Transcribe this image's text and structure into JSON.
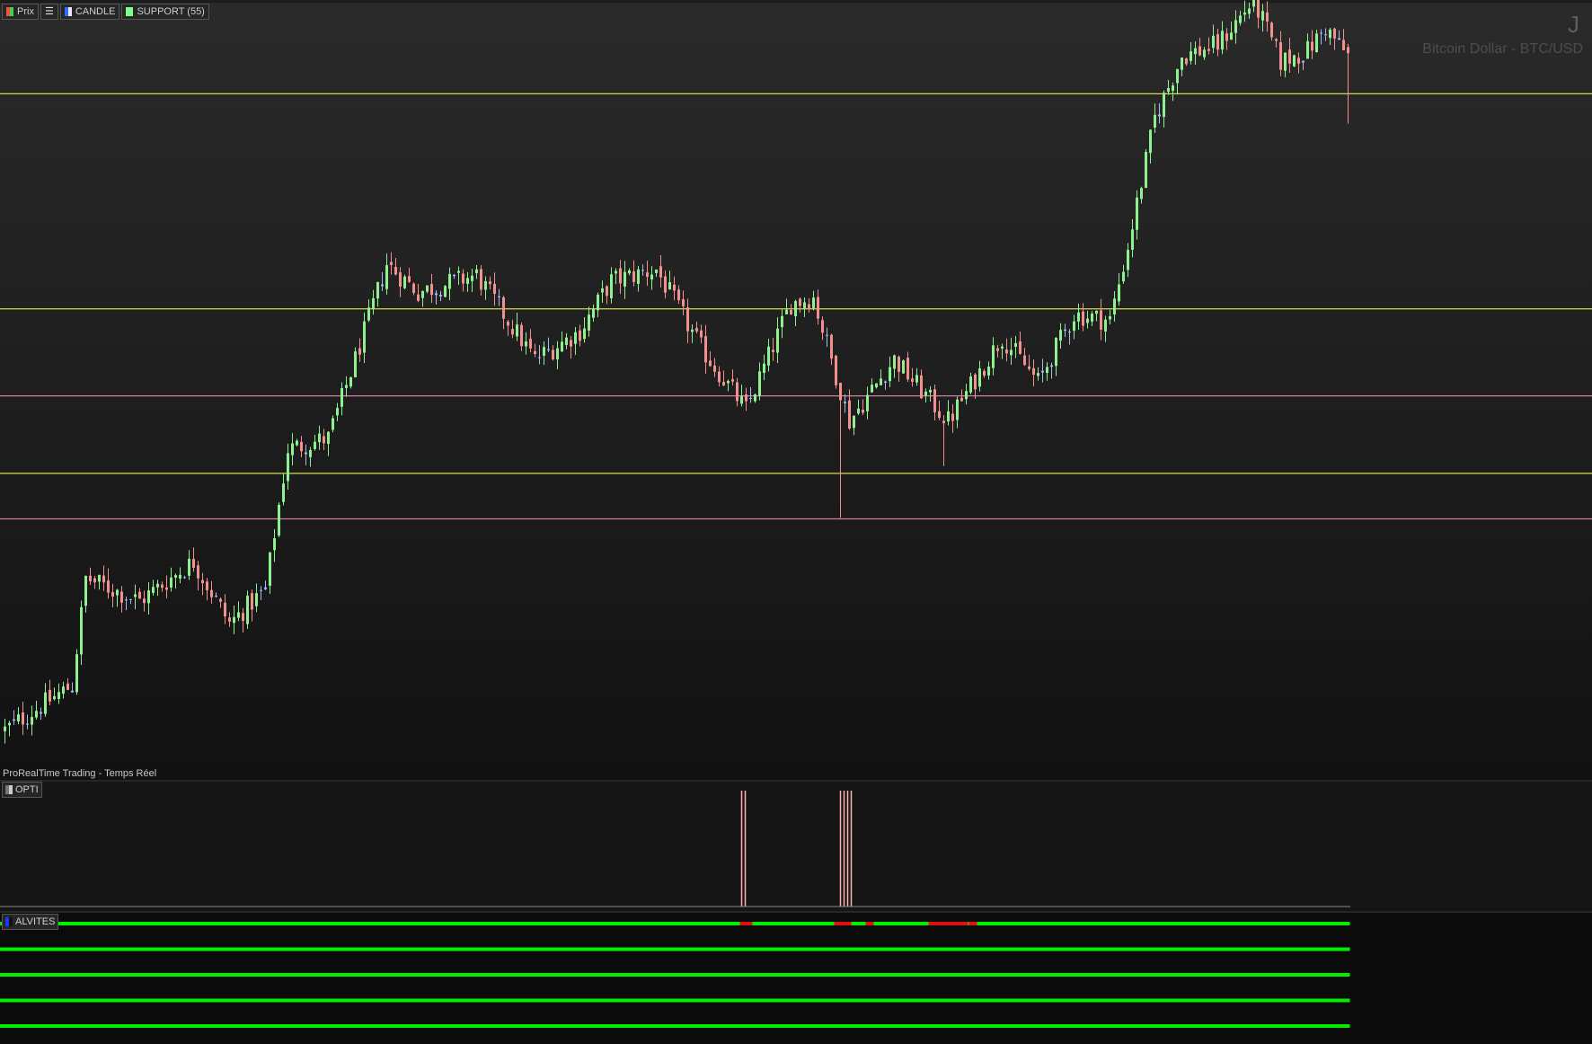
{
  "legend": [
    {
      "label": "Prix",
      "swatch": "split"
    },
    {
      "label": "",
      "swatch": "list-icon"
    },
    {
      "label": "CANDLE",
      "swatch": "blue"
    },
    {
      "label": "SUPPORT (55)",
      "swatch": "green"
    }
  ],
  "header": {
    "period": "J",
    "instrument": "Bitcoin Dollar - BTC/USD"
  },
  "footer_credit": "ProRealTime Trading - Temps Réel",
  "panes": {
    "opti_label": "OPTI",
    "alvites_label": "ALVITES"
  },
  "colors": {
    "background_top": "#2a2a2a",
    "background_bottom": "#121212",
    "bull": "#8ef08e",
    "bear": "#f29090",
    "neutral": "#a9b8f2",
    "resistance": "#d8d84a",
    "support": "#d27ea6",
    "signal": "#ffb3b3",
    "alvites_on": "#00ee00",
    "alvites_off": "#dd1111"
  },
  "chart_data": {
    "type": "candlestick",
    "title": "Bitcoin Dollar - BTC/USD",
    "timeframe": "J",
    "n_candles": 300,
    "price_range": [
      0,
      100
    ],
    "anchors": [
      {
        "i": 0,
        "v": 6
      },
      {
        "i": 15,
        "v": 14
      },
      {
        "i": 18,
        "v": 33
      },
      {
        "i": 30,
        "v": 29
      },
      {
        "i": 42,
        "v": 36
      },
      {
        "i": 50,
        "v": 25
      },
      {
        "i": 58,
        "v": 31
      },
      {
        "i": 63,
        "v": 56
      },
      {
        "i": 72,
        "v": 58
      },
      {
        "i": 78,
        "v": 72
      },
      {
        "i": 85,
        "v": 89
      },
      {
        "i": 92,
        "v": 84
      },
      {
        "i": 105,
        "v": 87
      },
      {
        "i": 118,
        "v": 72
      },
      {
        "i": 128,
        "v": 77
      },
      {
        "i": 135,
        "v": 86
      },
      {
        "i": 145,
        "v": 88
      },
      {
        "i": 155,
        "v": 74
      },
      {
        "i": 165,
        "v": 63
      },
      {
        "i": 175,
        "v": 82
      },
      {
        "i": 180,
        "v": 83
      },
      {
        "i": 188,
        "v": 61
      },
      {
        "i": 198,
        "v": 72
      },
      {
        "i": 210,
        "v": 61
      },
      {
        "i": 222,
        "v": 76
      },
      {
        "i": 230,
        "v": 68
      },
      {
        "i": 238,
        "v": 80
      },
      {
        "i": 246,
        "v": 79
      },
      {
        "i": 250,
        "v": 92
      },
      {
        "i": 256,
        "v": 115
      },
      {
        "i": 262,
        "v": 126
      },
      {
        "i": 270,
        "v": 128
      },
      {
        "i": 278,
        "v": 136
      },
      {
        "i": 284,
        "v": 125
      },
      {
        "i": 290,
        "v": 127
      },
      {
        "i": 294,
        "v": 131
      },
      {
        "i": 299,
        "v": 126
      }
    ],
    "levels": [
      {
        "kind": "resistance",
        "value": 119.3
      },
      {
        "kind": "resistance",
        "value": 81.0
      },
      {
        "kind": "support",
        "value": 65.5
      },
      {
        "kind": "resistance",
        "value": 51.7
      },
      {
        "kind": "support",
        "value": 43.6
      }
    ],
    "opti_signals": [
      {
        "index": 164,
        "lines": 2
      },
      {
        "index": 186,
        "lines": 4
      }
    ],
    "alvites_rows": 5,
    "alvites_red_ranges": [
      [
        164,
        166
      ],
      [
        185,
        188
      ],
      [
        192,
        193
      ],
      [
        206,
        214
      ],
      [
        215,
        216
      ]
    ]
  }
}
